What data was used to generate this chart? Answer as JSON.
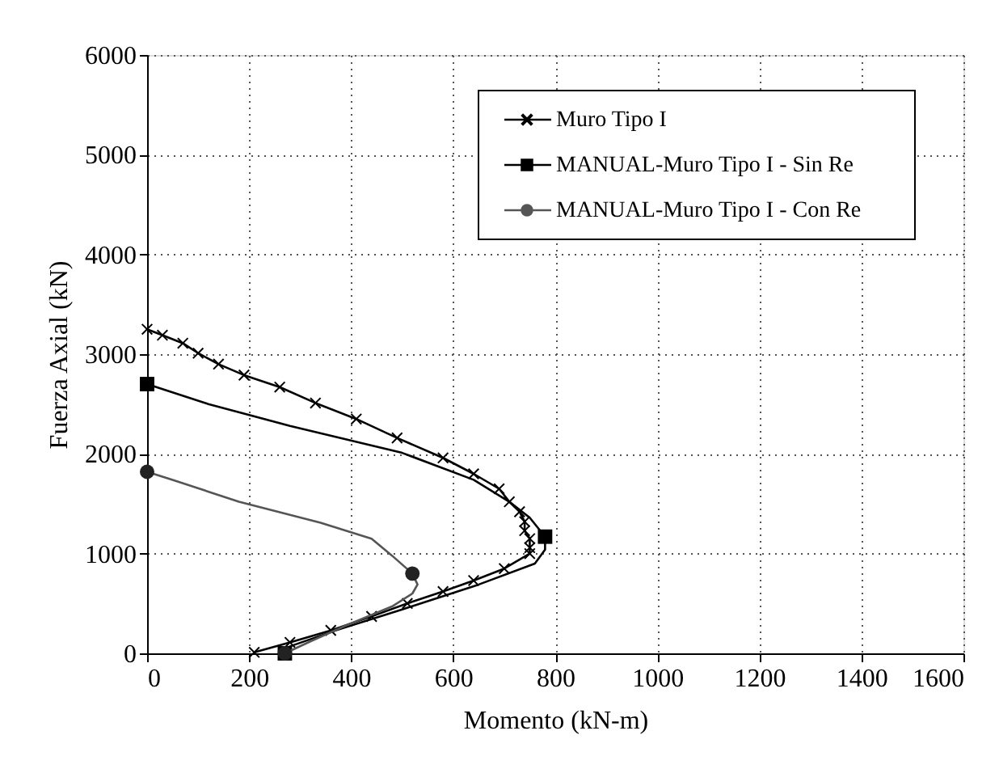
{
  "chart_data": {
    "type": "line",
    "xlabel": "Momento (kN-m)",
    "ylabel": "Fuerza Axial (kN)",
    "xlim": [
      0,
      1600
    ],
    "ylim": [
      0,
      6000
    ],
    "xticks": [
      0,
      200,
      400,
      600,
      800,
      1000,
      1200,
      1400,
      1600
    ],
    "yticks": [
      0,
      1000,
      2000,
      3000,
      4000,
      5000,
      6000
    ],
    "grid": true,
    "legend": "top right",
    "line_style": "solid",
    "series": [
      {
        "name": "Muro Tipo I",
        "color": "#000000",
        "marker": "cross",
        "x": [
          0,
          30,
          70,
          100,
          140,
          190,
          260,
          330,
          410,
          490,
          580,
          640,
          690,
          710,
          730,
          740,
          740,
          750,
          750,
          750,
          700,
          640,
          580,
          510,
          440,
          360,
          280,
          210
        ],
        "values": [
          3250,
          3190,
          3110,
          3010,
          2900,
          2790,
          2670,
          2510,
          2350,
          2160,
          1960,
          1800,
          1650,
          1520,
          1420,
          1320,
          1230,
          1150,
          1060,
          1000,
          850,
          730,
          620,
          500,
          370,
          230,
          110,
          10
        ]
      },
      {
        "name": "MANUAL-Muro Tipo I - Sin Re",
        "color": "#000000",
        "marker": "none",
        "x": [
          0,
          120,
          280,
          500,
          640,
          710,
          750,
          780,
          780,
          760,
          650,
          500,
          370,
          280,
          270
        ],
        "values": [
          2700,
          2500,
          2280,
          2010,
          1740,
          1520,
          1360,
          1170,
          1040,
          900,
          690,
          440,
          230,
          70,
          0
        ]
      },
      {
        "color": "#000000",
        "type": "scatter",
        "marker": "square",
        "x": [
          0,
          780,
          270
        ],
        "values": [
          2700,
          1170,
          0
        ]
      },
      {
        "name": "MANUAL-Muro Tipo I - Con Re",
        "color": "#555555",
        "marker": "none",
        "x": [
          0,
          50,
          180,
          340,
          440,
          480,
          520,
          530,
          520,
          480,
          390,
          320,
          270
        ],
        "values": [
          1820,
          1740,
          1520,
          1310,
          1150,
          980,
          800,
          690,
          600,
          470,
          280,
          120,
          0
        ]
      },
      {
        "color": "#222222",
        "type": "scatter",
        "marker": "circle",
        "x": [
          0,
          520,
          270
        ],
        "values": [
          1820,
          800,
          0
        ]
      }
    ]
  }
}
